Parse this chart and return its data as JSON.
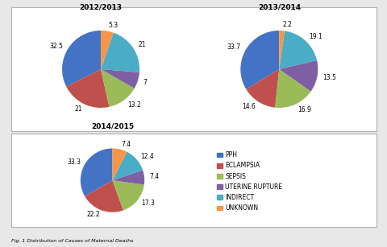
{
  "pie1": {
    "title": "2012/2013",
    "values": [
      32.5,
      21,
      13.2,
      7,
      21,
      5.3
    ],
    "labels": [
      "32.5",
      "21",
      "13.2",
      "7",
      "21",
      "5.3"
    ],
    "colors": [
      "#4472c4",
      "#c0504d",
      "#9bbb59",
      "#7f5fa4",
      "#4bacc6",
      "#f79646"
    ],
    "startangle": 90
  },
  "pie2": {
    "title": "2013/2014",
    "values": [
      33.7,
      14.6,
      16.9,
      13.5,
      19.1,
      2.2
    ],
    "labels": [
      "33.7",
      "14.6",
      "16.9",
      "13.5",
      "19.1",
      "2.2"
    ],
    "colors": [
      "#4472c4",
      "#c0504d",
      "#9bbb59",
      "#7f5fa4",
      "#4bacc6",
      "#f79646"
    ],
    "startangle": 90
  },
  "pie3": {
    "title": "2014/2015",
    "values": [
      33.3,
      22.2,
      17.3,
      7.4,
      12.4,
      7.4
    ],
    "labels": [
      "33.3",
      "22.2",
      "17.3",
      "7.4",
      "12.4",
      "7.4"
    ],
    "colors": [
      "#4472c4",
      "#c0504d",
      "#9bbb59",
      "#7f5fa4",
      "#4bacc6",
      "#f79646"
    ],
    "startangle": 90
  },
  "legend_labels": [
    "PPH",
    "ECLAMPSIA",
    "SEPSIS",
    "UTERINE RUPTURE",
    "INDIRECT",
    "UNKNOWN"
  ],
  "legend_colors": [
    "#4472c4",
    "#c0504d",
    "#9bbb59",
    "#7f5fa4",
    "#4bacc6",
    "#f79646"
  ],
  "caption": "Fig. 1 Distribution of Causes of Maternal Deaths",
  "background_color": "#e8e8e8",
  "box_background": "#ffffff",
  "border_color": "#b0b0b0",
  "title_fontsize": 6.5,
  "label_fontsize": 5.5,
  "legend_fontsize": 5.5,
  "caption_fontsize": 4.5
}
